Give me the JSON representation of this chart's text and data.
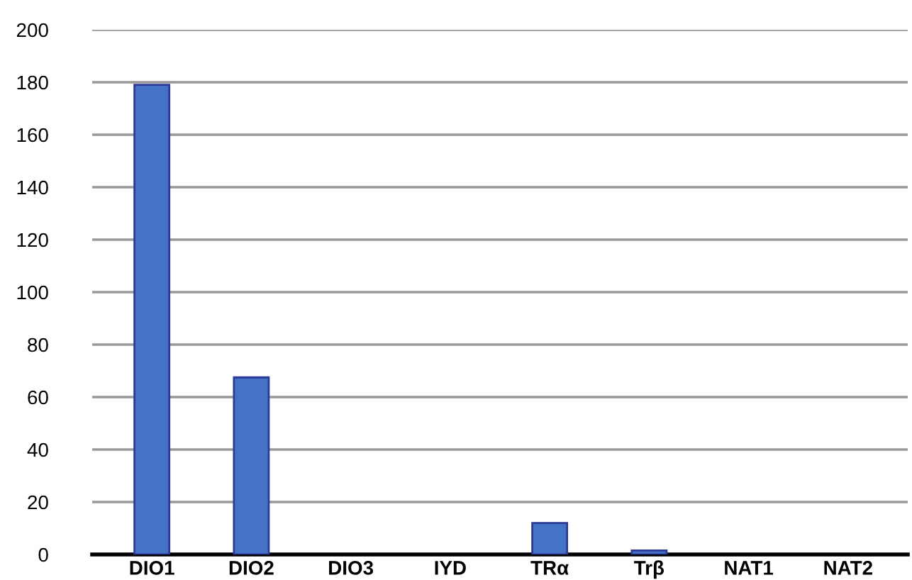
{
  "chart_data": {
    "type": "bar",
    "categories": [
      "DIO1",
      "DIO2",
      "DIO3",
      "IYD",
      "TRα",
      "Trβ",
      "NAT1",
      "NAT2"
    ],
    "values": [
      179,
      67.5,
      0,
      0,
      12,
      1.5,
      0,
      0
    ],
    "color": "#4472c4",
    "ylim": [
      0,
      200
    ],
    "yticks": [
      0,
      20,
      40,
      60,
      80,
      100,
      120,
      140,
      160,
      180,
      200
    ],
    "grid": "y"
  }
}
